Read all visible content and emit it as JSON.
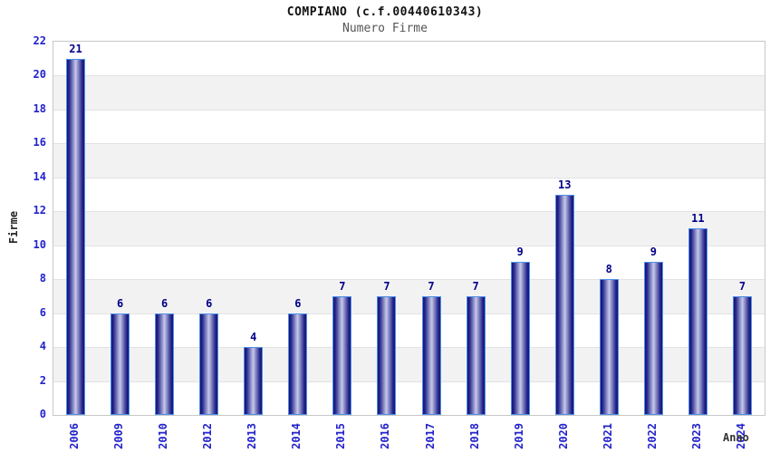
{
  "chart_data": {
    "type": "bar",
    "title": "COMPIANO (c.f.00440610343)",
    "subtitle": "Numero Firme",
    "xlabel": "Anno",
    "ylabel": "Firme",
    "categories": [
      "2006",
      "2009",
      "2010",
      "2012",
      "2013",
      "2014",
      "2015",
      "2016",
      "2017",
      "2018",
      "2019",
      "2020",
      "2021",
      "2022",
      "2023",
      "2024"
    ],
    "values": [
      21,
      6,
      6,
      6,
      4,
      6,
      7,
      7,
      7,
      7,
      9,
      13,
      8,
      9,
      11,
      7
    ],
    "ylim": [
      0,
      22
    ],
    "ytick_step": 2,
    "legend_position": "none",
    "grid": "alternating-horizontal-bands",
    "colors": {
      "bar_dark": "#15156d",
      "bar_mid": "#26268e",
      "bar_light": "#c6cae8",
      "bar_border": "#4d90e8",
      "axis_text": "#2222cc",
      "value_label": "#00008b",
      "band_gray": "#f2f2f2",
      "grid_line": "#e2e2e2",
      "plot_border": "#c8c8c8"
    }
  }
}
